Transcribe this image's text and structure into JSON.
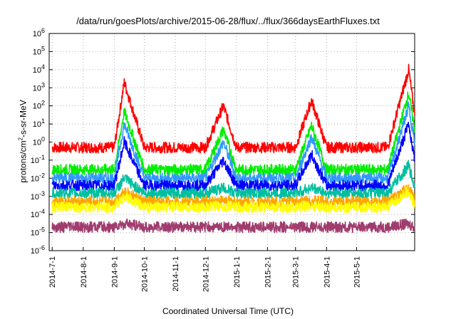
{
  "chart_data": {
    "type": "line",
    "title": "/data/run/goesPlots/archive/2015-06-28/flux/../flux/366daysEarthFluxes.txt",
    "xlabel": "Coordinated Universal Time (UTC)",
    "ylabel": "protons/cm2-s-sr-MeV",
    "y_scale": "log",
    "ylim": [
      1e-06,
      1000000.0
    ],
    "xlim": [
      "2014-06-28",
      "2015-06-28"
    ],
    "grid": true,
    "x_ticks": [
      "2014-7-1",
      "2014-8-1",
      "2014-9-1",
      "2014-10-1",
      "2014-11-1",
      "2014-12-1",
      "2015-1-1",
      "2015-2-1",
      "2015-3-1",
      "2015-4-1",
      "2015-5-1"
    ],
    "y_ticks": [
      "10-6",
      "10-5",
      "10-4",
      "10-3",
      "10-2",
      "10-1",
      "100",
      "101",
      "102",
      "103",
      "104",
      "105",
      "106"
    ],
    "series": [
      {
        "color": "#ff0000",
        "x": [
          "2014-07-01",
          "2014-08-01",
          "2014-09-01",
          "2014-09-11",
          "2014-10-01",
          "2014-11-01",
          "2014-12-01",
          "2014-12-19",
          "2015-01-01",
          "2015-02-01",
          "2015-03-01",
          "2015-03-17",
          "2015-04-01",
          "2015-05-01",
          "2015-06-01",
          "2015-06-22",
          "2015-06-28"
        ],
        "values": [
          0.5,
          0.5,
          0.5,
          2000,
          0.5,
          0.5,
          0.5,
          100,
          0.5,
          0.5,
          0.5,
          200,
          0.5,
          0.5,
          0.5,
          10000,
          30
        ]
      },
      {
        "color": "#00ee00",
        "x": [
          "2014-07-01",
          "2014-08-01",
          "2014-09-01",
          "2014-09-11",
          "2014-10-01",
          "2014-11-01",
          "2014-12-01",
          "2014-12-19",
          "2015-01-01",
          "2015-02-01",
          "2015-03-01",
          "2015-03-17",
          "2015-04-01",
          "2015-05-01",
          "2015-06-01",
          "2015-06-22",
          "2015-06-28"
        ],
        "values": [
          0.03,
          0.03,
          0.03,
          50,
          0.03,
          0.03,
          0.03,
          5,
          0.03,
          0.03,
          0.03,
          8,
          0.03,
          0.03,
          0.03,
          500,
          5
        ]
      },
      {
        "color": "#3399ff",
        "x": [
          "2014-07-01",
          "2014-08-01",
          "2014-09-01",
          "2014-09-11",
          "2014-10-01",
          "2014-11-01",
          "2014-12-01",
          "2014-12-19",
          "2015-01-01",
          "2015-02-01",
          "2015-03-01",
          "2015-03-17",
          "2015-04-01",
          "2015-05-01",
          "2015-06-01",
          "2015-06-22",
          "2015-06-28"
        ],
        "values": [
          0.01,
          0.01,
          0.01,
          10,
          0.01,
          0.01,
          0.01,
          1,
          0.01,
          0.01,
          0.01,
          2,
          0.01,
          0.01,
          0.01,
          100,
          1
        ]
      },
      {
        "color": "#0000ff",
        "x": [
          "2014-07-01",
          "2014-08-01",
          "2014-09-01",
          "2014-09-11",
          "2014-10-01",
          "2014-11-01",
          "2014-12-01",
          "2014-12-19",
          "2015-01-01",
          "2015-02-01",
          "2015-03-01",
          "2015-03-17",
          "2015-04-01",
          "2015-05-01",
          "2015-06-01",
          "2015-06-22",
          "2015-06-28"
        ],
        "values": [
          0.004,
          0.004,
          0.004,
          1,
          0.004,
          0.004,
          0.004,
          0.1,
          0.004,
          0.004,
          0.004,
          0.2,
          0.004,
          0.004,
          0.004,
          10,
          0.1
        ]
      },
      {
        "color": "#00bfa0",
        "x": [
          "2014-07-01",
          "2014-08-01",
          "2014-09-01",
          "2014-09-11",
          "2014-10-01",
          "2014-11-01",
          "2014-12-01",
          "2014-12-19",
          "2015-01-01",
          "2015-02-01",
          "2015-03-01",
          "2015-03-17",
          "2015-04-01",
          "2015-05-01",
          "2015-06-01",
          "2015-06-22",
          "2015-06-28"
        ],
        "values": [
          0.0015,
          0.0015,
          0.0015,
          0.01,
          0.0015,
          0.0015,
          0.0015,
          0.003,
          0.0015,
          0.0015,
          0.0015,
          0.003,
          0.0015,
          0.0015,
          0.0015,
          0.05,
          0.003
        ]
      },
      {
        "color": "#ffa500",
        "x": [
          "2014-07-01",
          "2014-08-01",
          "2014-09-01",
          "2014-09-11",
          "2014-10-01",
          "2014-11-01",
          "2014-12-01",
          "2014-12-19",
          "2015-01-01",
          "2015-02-01",
          "2015-03-01",
          "2015-03-17",
          "2015-04-01",
          "2015-05-01",
          "2015-06-01",
          "2015-06-22",
          "2015-06-28"
        ],
        "values": [
          0.0005,
          0.0005,
          0.0005,
          0.002,
          0.0005,
          0.0005,
          0.0005,
          0.0006,
          0.0005,
          0.0005,
          0.0005,
          0.0006,
          0.0005,
          0.0005,
          0.0005,
          0.003,
          0.0006
        ]
      },
      {
        "color": "#ffff00",
        "x": [
          "2014-07-01",
          "2014-08-01",
          "2014-09-01",
          "2014-09-11",
          "2014-10-01",
          "2014-11-01",
          "2014-12-01",
          "2014-12-19",
          "2015-01-01",
          "2015-02-01",
          "2015-03-01",
          "2015-03-17",
          "2015-04-01",
          "2015-05-01",
          "2015-06-01",
          "2015-06-22",
          "2015-06-28"
        ],
        "values": [
          0.00025,
          0.00025,
          0.00025,
          0.001,
          0.00025,
          0.00025,
          0.00025,
          0.0003,
          0.00025,
          0.00025,
          0.00025,
          0.0003,
          0.00025,
          0.00025,
          0.00025,
          0.002,
          0.0003
        ]
      },
      {
        "color": "#a03c6e",
        "x": [
          "2014-07-01",
          "2014-08-01",
          "2014-09-01",
          "2014-09-11",
          "2014-10-01",
          "2014-11-01",
          "2014-12-01",
          "2014-12-19",
          "2015-01-01",
          "2015-02-01",
          "2015-03-01",
          "2015-03-17",
          "2015-04-01",
          "2015-05-01",
          "2015-06-01",
          "2015-06-22",
          "2015-06-28"
        ],
        "values": [
          2e-05,
          2e-05,
          2e-05,
          3e-05,
          2e-05,
          2e-05,
          2e-05,
          2e-05,
          2e-05,
          2e-05,
          2e-05,
          2e-05,
          2e-05,
          2e-05,
          2e-05,
          3e-05,
          2e-05
        ]
      }
    ]
  }
}
